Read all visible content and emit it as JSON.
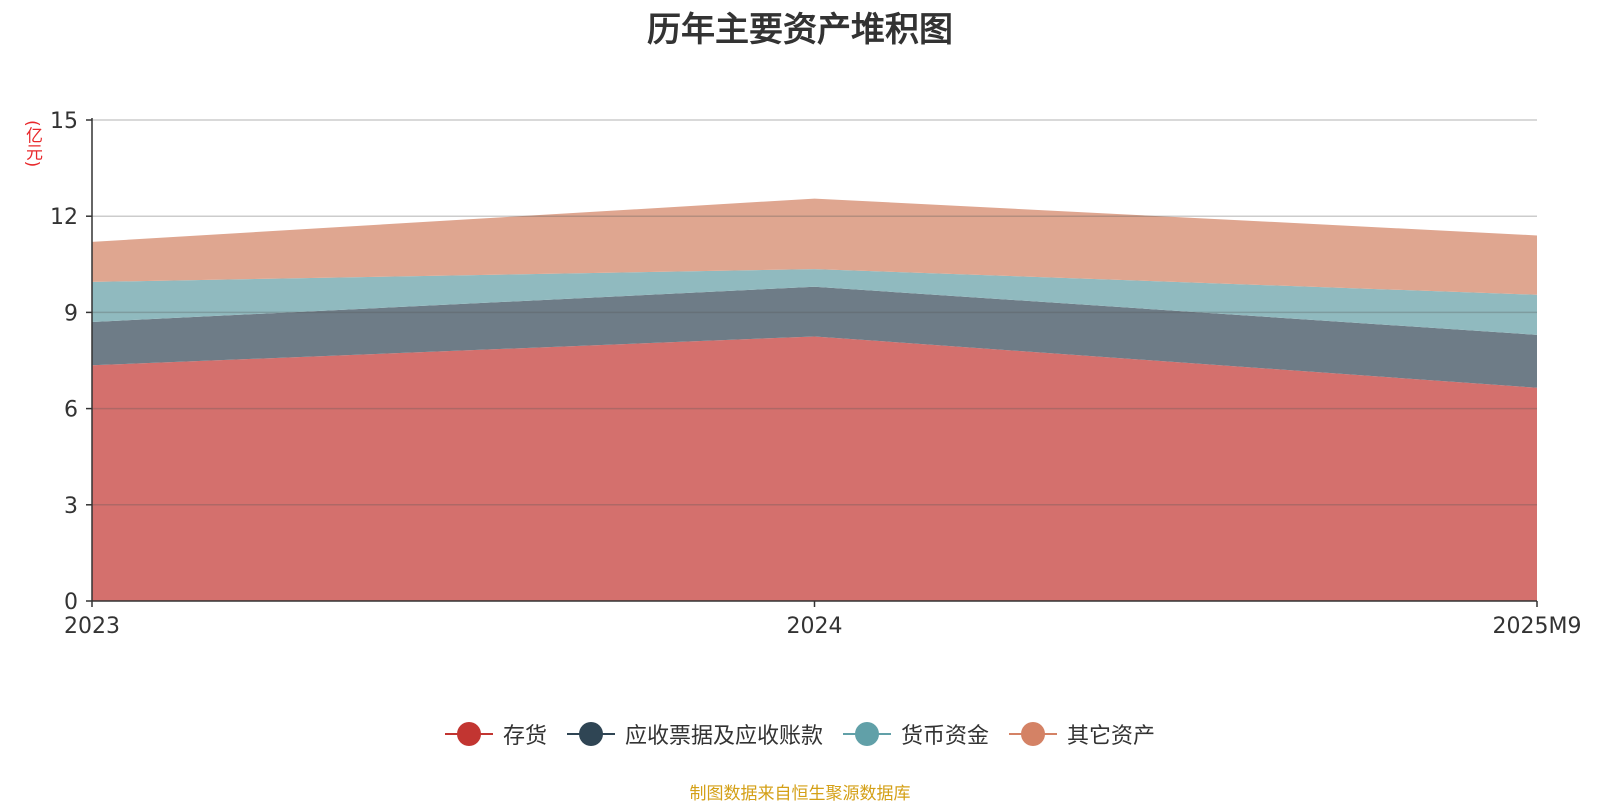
{
  "chart_data": {
    "type": "area",
    "stacked": true,
    "title": "历年主要资产堆积图",
    "unit_label": "(亿元)",
    "categories": [
      "2023",
      "2024",
      "2025M9"
    ],
    "ylim": [
      0,
      15
    ],
    "yticks": [
      0,
      3,
      6,
      9,
      12,
      15
    ],
    "grid": true,
    "series": [
      {
        "name": "存货",
        "values": [
          7.35,
          8.25,
          6.65
        ],
        "color": "#c23531",
        "fill": "#d4706d"
      },
      {
        "name": "应收票据及应收账款",
        "values": [
          1.35,
          1.55,
          1.65
        ],
        "color": "#2f4554",
        "fill": "#6e7c87"
      },
      {
        "name": "货币资金",
        "values": [
          1.25,
          0.55,
          1.25
        ],
        "color": "#61a0a8",
        "fill": "#90babf"
      },
      {
        "name": "其它资产",
        "values": [
          1.25,
          2.2,
          1.85
        ],
        "color": "#d48265",
        "fill": "#dfa690"
      }
    ],
    "legend_position": "bottom-center"
  },
  "footer": {
    "source": "制图数据来自恒生聚源数据库"
  }
}
